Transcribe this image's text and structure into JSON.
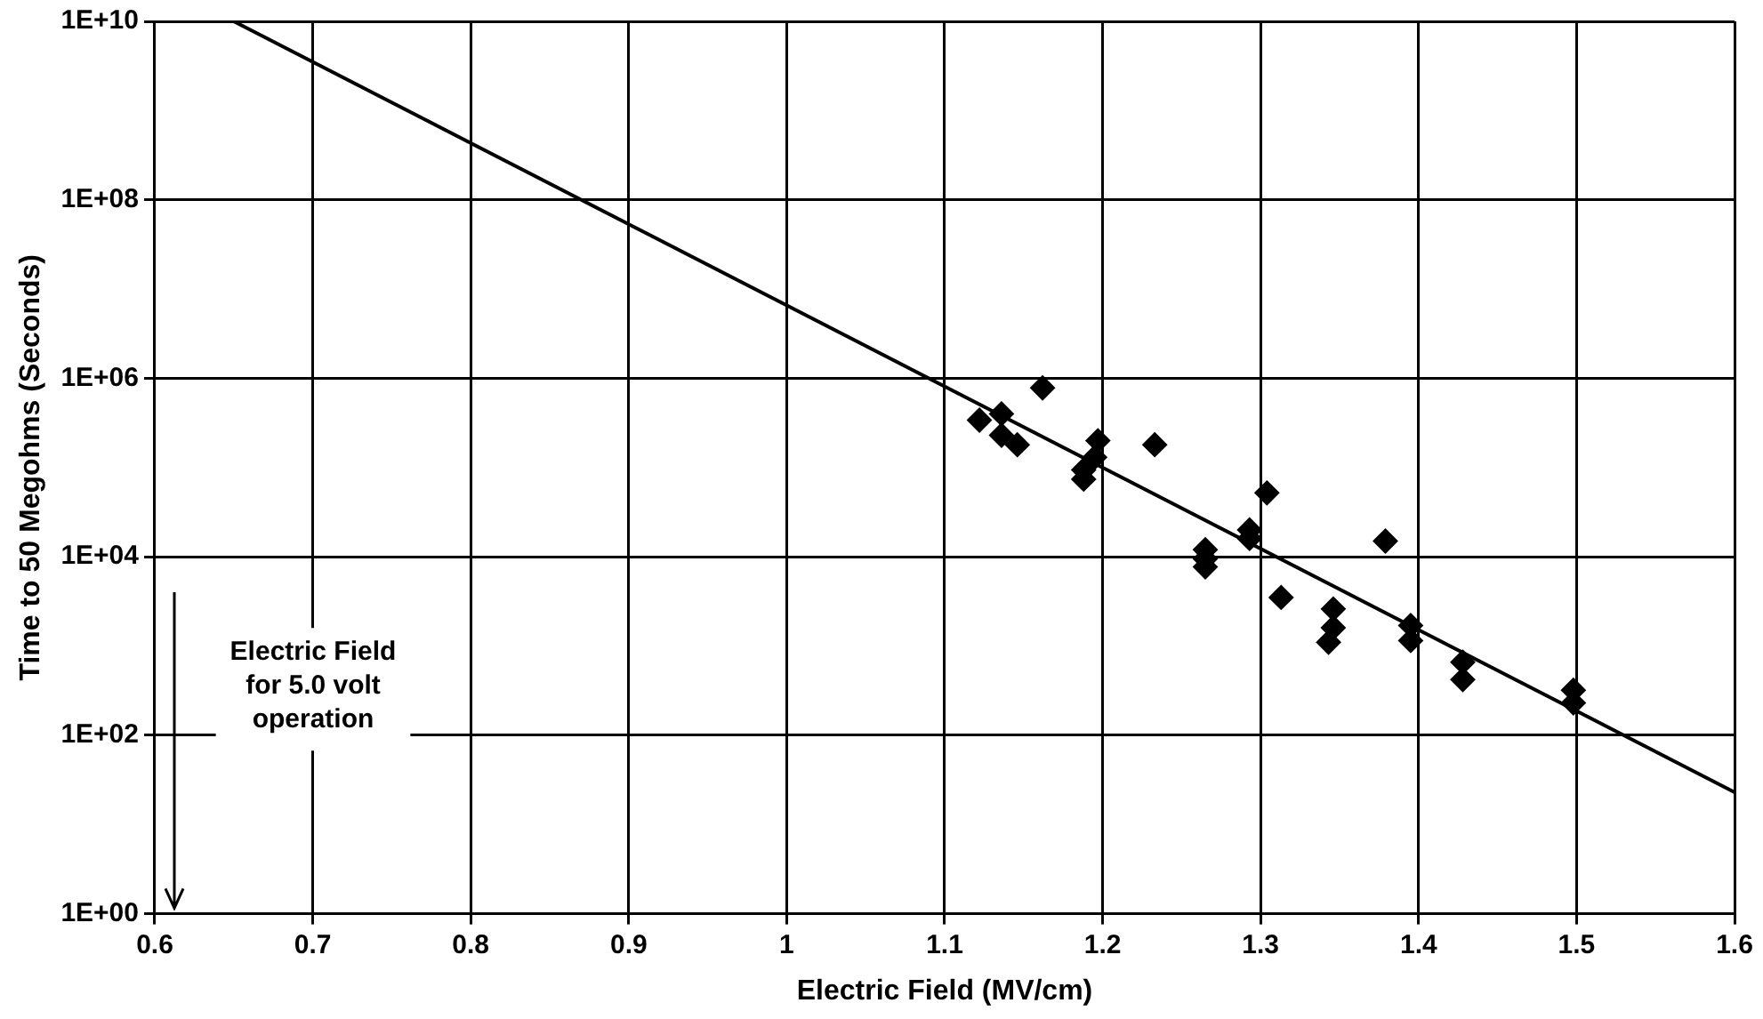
{
  "chart_data": {
    "type": "scatter",
    "xlabel": "Electric Field (MV/cm)",
    "ylabel": "Time to 50 Megohms (Seconds)",
    "log": "y",
    "grid": true,
    "legend": false,
    "marker": "diamond",
    "xlim": [
      0.6,
      1.6
    ],
    "xticks": [
      0.6,
      0.7,
      0.8,
      0.9,
      1,
      1.1,
      1.2,
      1.3,
      1.4,
      1.5,
      1.6
    ],
    "ylim": [
      1,
      10000000000
    ],
    "yticks": [
      {
        "value": 1,
        "label": "1E+00"
      },
      {
        "value": 100,
        "label": "1E+02"
      },
      {
        "value": 10000,
        "label": "1E+04"
      },
      {
        "value": 1000000,
        "label": "1E+06"
      },
      {
        "value": 100000000,
        "label": "1E+08"
      },
      {
        "value": 10000000000,
        "label": "1E+10"
      }
    ],
    "series": [
      {
        "color": "#000000",
        "x": [
          1.122,
          1.136,
          1.136,
          1.146,
          1.162,
          1.197,
          1.195,
          1.188,
          1.188,
          1.233,
          1.304,
          1.293,
          1.293,
          1.265,
          1.265,
          1.265,
          1.313,
          1.379,
          1.346,
          1.346,
          1.343,
          1.395,
          1.395,
          1.428,
          1.428,
          1.498,
          1.498
        ],
        "values": [
          340000,
          400000,
          230000,
          180000,
          780000,
          200000,
          130000,
          94000,
          74000,
          180000,
          52000,
          20000,
          16000,
          12000,
          9500,
          7700,
          3500,
          15000,
          2600,
          1600,
          1100,
          1700,
          1150,
          660,
          420,
          320,
          230
        ]
      },
      {
        "type": "line",
        "color": "#000000",
        "x": [
          0.65,
          1.6
        ],
        "values": [
          10000000000,
          23
        ],
        "marker": "none",
        "line_style": "solid"
      }
    ],
    "annotations": [
      "Electric Field for 5.0 volt operation"
    ]
  }
}
